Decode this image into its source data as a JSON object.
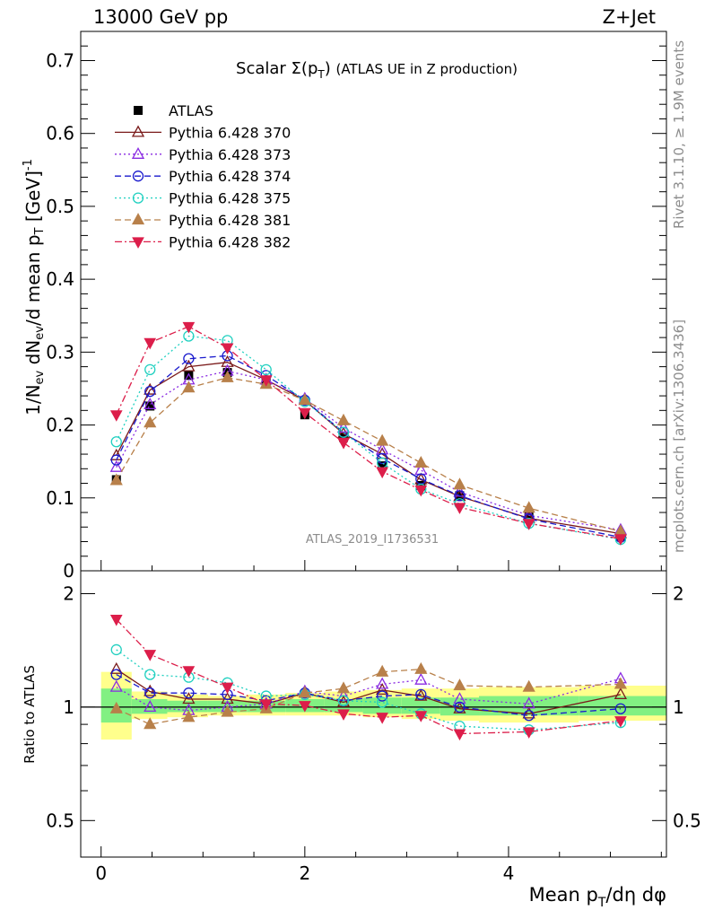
{
  "header": {
    "left": "13000 GeV pp",
    "right": "Z+Jet"
  },
  "side": {
    "rivet": "Rivet 3.1.10, ≥ 1.9M events",
    "mcplots": "mcplots.cern.ch [arXiv:1306.3436]"
  },
  "analysis_id": "ATLAS_2019_I1736531",
  "chart_data": [
    {
      "type": "line",
      "title": "Scalar Σ(p_T) (ATLAS UE in Z production)",
      "ylabel": "1/N_ev dN_ev/d mean p_T [GeV]^-1",
      "xlabel": "Mean p_T/dη dφ",
      "xlim": [
        -0.2,
        5.55
      ],
      "ylim": [
        0,
        0.74
      ],
      "xticks": [
        "0",
        "2",
        "4"
      ],
      "yticks": [
        "0",
        "0.1",
        "0.2",
        "0.3",
        "0.4",
        "0.5",
        "0.6",
        "0.7"
      ],
      "legend_position": "top-left",
      "x": [
        0.15,
        0.48,
        0.86,
        1.24,
        1.62,
        2.0,
        2.38,
        2.76,
        3.14,
        3.52,
        4.2,
        5.1
      ],
      "series": [
        {
          "name": "ATLAS",
          "color": "#000000",
          "marker": "square",
          "dash": "none",
          "values": [
            0.125,
            0.226,
            0.268,
            0.272,
            0.258,
            0.214,
            0.183,
            0.144,
            0.117,
            0.103,
            0.075,
            0.047
          ]
        },
        {
          "name": "Pythia 6.428 370",
          "color": "#7a1a1a",
          "marker": "triangle-open",
          "dash": "solid",
          "values": [
            0.158,
            0.248,
            0.28,
            0.286,
            0.262,
            0.234,
            0.188,
            0.16,
            0.125,
            0.102,
            0.072,
            0.051
          ]
        },
        {
          "name": "Pythia 6.428 373",
          "color": "#8a2be2",
          "marker": "triangle-open",
          "dash": "dot",
          "values": [
            0.142,
            0.228,
            0.262,
            0.274,
            0.262,
            0.236,
            0.196,
            0.166,
            0.138,
            0.108,
            0.076,
            0.056
          ]
        },
        {
          "name": "Pythia 6.428 374",
          "color": "#1a1acd",
          "marker": "circle-open",
          "dash": "dash",
          "values": [
            0.152,
            0.246,
            0.291,
            0.295,
            0.268,
            0.234,
            0.19,
            0.154,
            0.126,
            0.103,
            0.071,
            0.046
          ]
        },
        {
          "name": "Pythia 6.428 375",
          "color": "#20d0c0",
          "marker": "circle-open",
          "dash": "dot",
          "values": [
            0.177,
            0.276,
            0.322,
            0.316,
            0.276,
            0.232,
            0.19,
            0.148,
            0.112,
            0.092,
            0.065,
            0.043
          ]
        },
        {
          "name": "Pythia 6.428 381",
          "color": "#b8804a",
          "marker": "triangle-filled",
          "dash": "dash",
          "values": [
            0.124,
            0.203,
            0.251,
            0.265,
            0.256,
            0.234,
            0.206,
            0.178,
            0.148,
            0.118,
            0.086,
            0.054
          ]
        },
        {
          "name": "Pythia 6.428 382",
          "color": "#dc1e4a",
          "marker": "triangledown-filled",
          "dash": "dashdot",
          "values": [
            0.214,
            0.313,
            0.335,
            0.306,
            0.262,
            0.217,
            0.176,
            0.136,
            0.111,
            0.087,
            0.065,
            0.044
          ]
        }
      ]
    },
    {
      "type": "line",
      "ylabel": "Ratio to ATLAS",
      "xlabel": "Mean p_T/dη dφ",
      "xlim": [
        -0.2,
        5.55
      ],
      "ylim": [
        0.4,
        2.3
      ],
      "log_y": true,
      "yticks": [
        "0.5",
        "1",
        "2"
      ],
      "xticks": [
        "0",
        "2",
        "4"
      ],
      "grid": false,
      "band_edges": [
        0.0,
        0.3,
        0.65,
        1.05,
        1.43,
        1.81,
        2.19,
        2.57,
        2.95,
        3.33,
        3.71,
        4.69,
        5.55
      ],
      "band_yellow": [
        [
          0.82,
          1.24
        ],
        [
          0.93,
          1.1
        ],
        [
          0.94,
          1.08
        ],
        [
          0.95,
          1.07
        ],
        [
          0.95,
          1.08
        ],
        [
          0.95,
          1.09
        ],
        [
          0.95,
          1.1
        ],
        [
          0.94,
          1.11
        ],
        [
          0.93,
          1.12
        ],
        [
          0.92,
          1.12
        ],
        [
          0.91,
          1.13
        ],
        [
          0.92,
          1.14
        ]
      ],
      "band_green": [
        [
          0.91,
          1.12
        ],
        [
          0.96,
          1.05
        ],
        [
          0.97,
          1.04
        ],
        [
          0.97,
          1.04
        ],
        [
          0.97,
          1.04
        ],
        [
          0.97,
          1.05
        ],
        [
          0.97,
          1.05
        ],
        [
          0.96,
          1.06
        ],
        [
          0.96,
          1.06
        ],
        [
          0.95,
          1.06
        ],
        [
          0.95,
          1.07
        ],
        [
          0.95,
          1.07
        ]
      ],
      "x": [
        0.15,
        0.48,
        0.86,
        1.24,
        1.62,
        2.0,
        2.38,
        2.76,
        3.14,
        3.52,
        4.2,
        5.1
      ],
      "series": [
        {
          "name": "Pythia 6.428 370",
          "color": "#7a1a1a",
          "marker": "triangle-open",
          "dash": "solid",
          "values": [
            1.26,
            1.1,
            1.05,
            1.05,
            1.02,
            1.09,
            1.03,
            1.11,
            1.07,
            0.99,
            0.96,
            1.08
          ]
        },
        {
          "name": "Pythia 6.428 373",
          "color": "#8a2be2",
          "marker": "triangle-open",
          "dash": "dot",
          "values": [
            1.13,
            1.0,
            0.98,
            1.0,
            1.02,
            1.1,
            1.07,
            1.15,
            1.18,
            1.05,
            1.02,
            1.19
          ]
        },
        {
          "name": "Pythia 6.428 374",
          "color": "#1a1acd",
          "marker": "circle-open",
          "dash": "dash",
          "values": [
            1.22,
            1.09,
            1.09,
            1.08,
            1.04,
            1.09,
            1.04,
            1.07,
            1.08,
            1.0,
            0.95,
            0.99
          ]
        },
        {
          "name": "Pythia 6.428 375",
          "color": "#20d0c0",
          "marker": "circle-open",
          "dash": "dot",
          "values": [
            1.42,
            1.22,
            1.2,
            1.16,
            1.07,
            1.08,
            1.04,
            1.03,
            0.96,
            0.89,
            0.87,
            0.91
          ]
        },
        {
          "name": "Pythia 6.428 381",
          "color": "#b8804a",
          "marker": "triangle-filled",
          "dash": "dash",
          "values": [
            0.99,
            0.9,
            0.94,
            0.97,
            0.99,
            1.09,
            1.12,
            1.24,
            1.26,
            1.14,
            1.13,
            1.15
          ]
        },
        {
          "name": "Pythia 6.428 382",
          "color": "#dc1e4a",
          "marker": "triangledown-filled",
          "dash": "dashdot",
          "values": [
            1.71,
            1.38,
            1.25,
            1.13,
            1.02,
            1.01,
            0.96,
            0.94,
            0.95,
            0.85,
            0.86,
            0.92
          ]
        }
      ]
    }
  ]
}
